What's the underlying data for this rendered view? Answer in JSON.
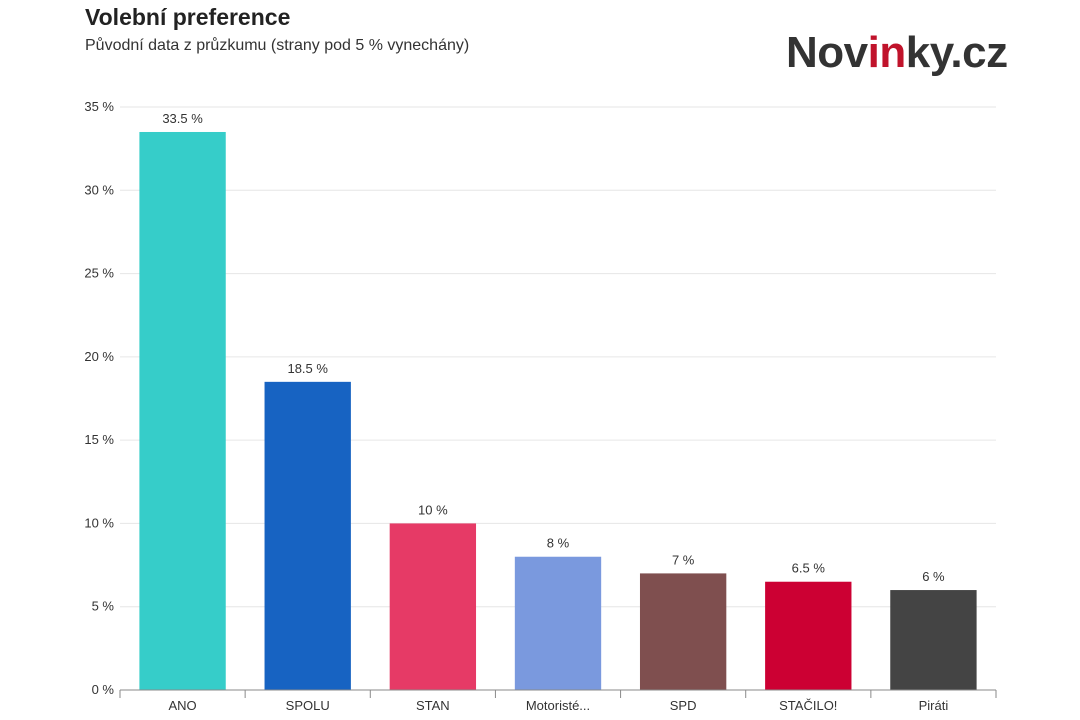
{
  "header": {
    "title": "Volební preference",
    "subtitle": "Původní data z průzkumu (strany pod 5 % vynechány)"
  },
  "logo": {
    "text_pre": "Nov",
    "text_accent": "in",
    "text_post": "ky.cz",
    "accent_color": "#c0132b"
  },
  "chart_data": {
    "type": "bar",
    "categories": [
      "ANO",
      "SPOLU",
      "STAN",
      "Motoristé...",
      "SPD",
      "STAČILO!",
      "Piráti"
    ],
    "values": [
      33.5,
      18.5,
      10,
      8,
      7,
      6.5,
      6
    ],
    "value_labels": [
      "33.5 %",
      "18.5 %",
      "10 %",
      "8 %",
      "7 %",
      "6.5 %",
      "6 %"
    ],
    "colors": [
      "#36cdc9",
      "#1763c2",
      "#e63a66",
      "#7a99de",
      "#7f4f4f",
      "#cc0033",
      "#444444"
    ],
    "ylim": [
      0,
      35
    ],
    "yticks": [
      0,
      5,
      10,
      15,
      20,
      25,
      30,
      35
    ],
    "ytick_labels": [
      "0 %",
      "5 %",
      "10 %",
      "15 %",
      "20 %",
      "25 %",
      "30 %",
      "35 %"
    ],
    "grid": true,
    "legend": "none"
  }
}
